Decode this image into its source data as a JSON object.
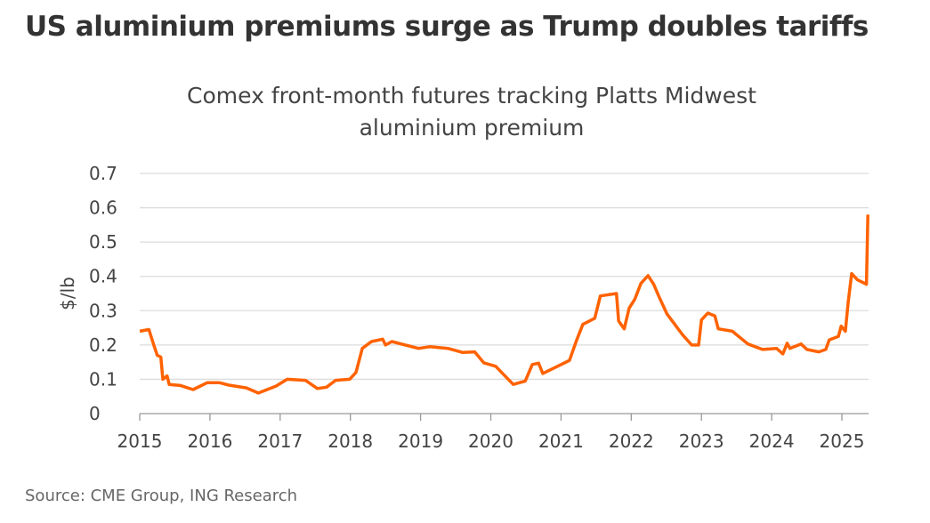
{
  "header": {
    "title": "US aluminium premiums surge as Trump doubles tariffs"
  },
  "footer": {
    "source": "Source: CME Group, ING Research"
  },
  "chart_data": {
    "type": "line",
    "title": "Comex front-month futures tracking Platts Midwest aluminium premium",
    "title_lines": [
      "Comex front-month futures tracking Platts Midwest",
      "aluminium premium"
    ],
    "xlabel": "",
    "ylabel": "$/lb",
    "xlim": [
      2015,
      2025.4
    ],
    "ylim": [
      0,
      0.7
    ],
    "x_ticks": [
      "2015",
      "2016",
      "2017",
      "2018",
      "2019",
      "2020",
      "2021",
      "2022",
      "2023",
      "2024",
      "2025"
    ],
    "y_ticks": [
      "0",
      "0.1",
      "0.2",
      "0.3",
      "0.4",
      "0.5",
      "0.6",
      "0.7"
    ],
    "grid": true,
    "legend": "none",
    "color": "#FF6200",
    "series": [
      {
        "x": [
          2015.0,
          2015.13,
          2015.2,
          2015.25,
          2015.3,
          2015.33,
          2015.39,
          2015.42,
          2015.58,
          2015.76,
          2015.96,
          2016.14,
          2016.27,
          2016.52,
          2016.69,
          2016.94,
          2017.1,
          2017.36,
          2017.53,
          2017.66,
          2017.79,
          2017.99,
          2018.08,
          2018.17,
          2018.3,
          2018.46,
          2018.5,
          2018.59,
          2018.97,
          2019.13,
          2019.39,
          2019.6,
          2019.77,
          2019.9,
          2020.07,
          2020.2,
          2020.32,
          2020.49,
          2020.59,
          2020.68,
          2020.74,
          2020.95,
          2021.12,
          2021.22,
          2021.31,
          2021.48,
          2021.56,
          2021.79,
          2021.82,
          2021.9,
          2021.97,
          2022.05,
          2022.14,
          2022.24,
          2022.32,
          2022.39,
          2022.51,
          2022.73,
          2022.86,
          2022.96,
          2023.0,
          2023.09,
          2023.19,
          2023.24,
          2023.44,
          2023.66,
          2023.87,
          2024.07,
          2024.16,
          2024.22,
          2024.26,
          2024.42,
          2024.5,
          2024.67,
          2024.77,
          2024.82,
          2024.95,
          2024.99,
          2025.05,
          2025.09,
          2025.14,
          2025.22,
          2025.35,
          2025.37
        ],
        "y": [
          0.24,
          0.245,
          0.2,
          0.17,
          0.165,
          0.1,
          0.11,
          0.085,
          0.082,
          0.07,
          0.09,
          0.09,
          0.083,
          0.075,
          0.06,
          0.08,
          0.1,
          0.097,
          0.073,
          0.077,
          0.097,
          0.1,
          0.12,
          0.19,
          0.21,
          0.217,
          0.2,
          0.21,
          0.19,
          0.195,
          0.19,
          0.178,
          0.18,
          0.148,
          0.138,
          0.11,
          0.085,
          0.095,
          0.143,
          0.147,
          0.117,
          0.138,
          0.155,
          0.213,
          0.26,
          0.278,
          0.343,
          0.35,
          0.27,
          0.247,
          0.307,
          0.333,
          0.38,
          0.402,
          0.377,
          0.343,
          0.29,
          0.23,
          0.2,
          0.2,
          0.273,
          0.293,
          0.285,
          0.247,
          0.24,
          0.203,
          0.187,
          0.19,
          0.174,
          0.205,
          0.19,
          0.203,
          0.187,
          0.18,
          0.187,
          0.215,
          0.225,
          0.255,
          0.24,
          0.325,
          0.408,
          0.39,
          0.377,
          0.58
        ]
      }
    ]
  }
}
